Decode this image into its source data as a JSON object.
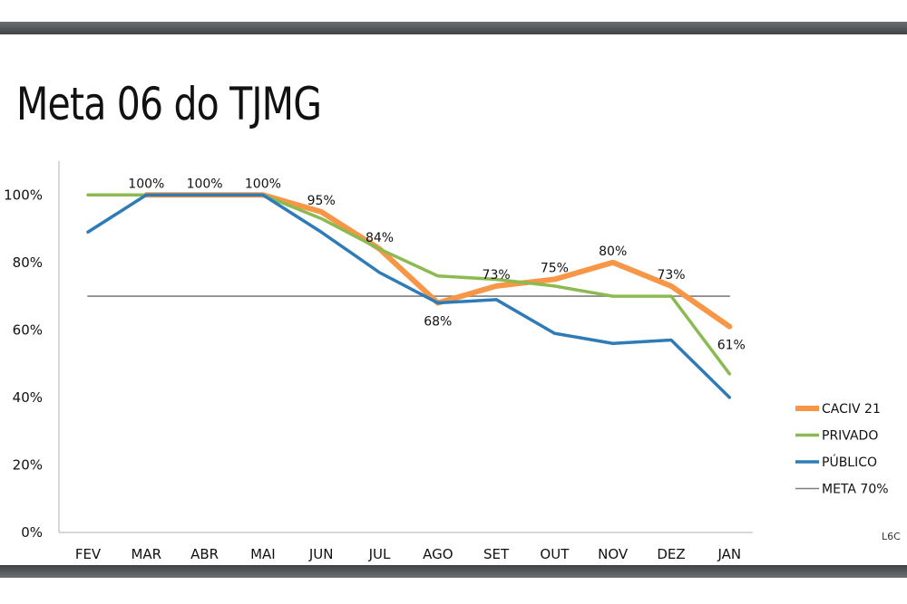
{
  "slide": {
    "title": "Meta 06 do TJMG",
    "logo_text": "L6C"
  },
  "chart_data": {
    "type": "line",
    "categories": [
      "FEV",
      "MAR",
      "ABR",
      "MAI",
      "JUN",
      "JUL",
      "AGO",
      "SET",
      "OUT",
      "NOV",
      "DEZ",
      "JAN"
    ],
    "ylim": [
      0,
      1
    ],
    "y_ticks": [
      0,
      0.2,
      0.4,
      0.6,
      0.8,
      1.0
    ],
    "y_tick_labels": [
      "0%",
      "20%",
      "40%",
      "60%",
      "80%",
      "100%"
    ],
    "grid": false,
    "legend_position": "right",
    "series": [
      {
        "name": "CACIV 21",
        "color": "#f79646",
        "values": [
          null,
          1.0,
          1.0,
          1.0,
          0.95,
          0.84,
          0.68,
          0.73,
          0.75,
          0.8,
          0.73,
          0.61
        ],
        "data_labels": [
          "",
          "100%",
          "100%",
          "100%",
          "95%",
          "84%",
          "68%",
          "73%",
          "75%",
          "80%",
          "73%",
          "61%"
        ]
      },
      {
        "name": "PRIVADO",
        "color": "#8cba52",
        "values": [
          1.0,
          1.0,
          1.0,
          1.0,
          0.93,
          0.84,
          0.76,
          0.75,
          0.73,
          0.7,
          0.7,
          0.47
        ]
      },
      {
        "name": "PÚBLICO",
        "color": "#2e7bb8",
        "values": [
          0.89,
          1.0,
          1.0,
          1.0,
          0.89,
          0.77,
          0.68,
          0.69,
          0.59,
          0.56,
          0.57,
          0.4
        ]
      },
      {
        "name": "META 70%",
        "color": "#7f7f7f",
        "values": [
          0.7,
          0.7,
          0.7,
          0.7,
          0.7,
          0.7,
          0.7,
          0.7,
          0.7,
          0.7,
          0.7,
          0.7
        ]
      }
    ]
  }
}
